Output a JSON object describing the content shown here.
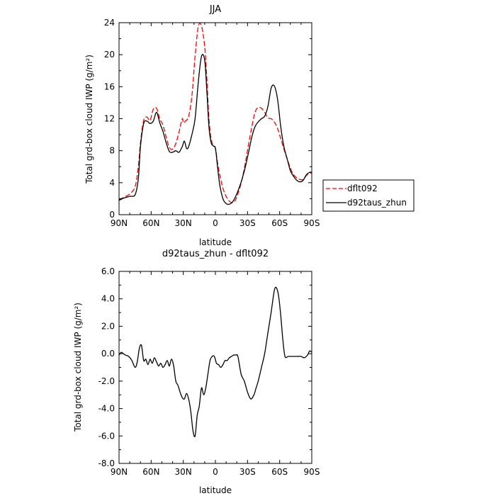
{
  "chart_data": [
    {
      "type": "line",
      "title": "JJA",
      "xlabel": "latitude",
      "ylabel": "Total grd-box cloud IWP (g/m²)",
      "xlim": [
        90,
        -90
      ],
      "ylim": [
        0,
        24
      ],
      "x_ticks": [
        90,
        60,
        30,
        0,
        -30,
        -60,
        -90
      ],
      "x_tick_labels": [
        "90N",
        "60N",
        "30N",
        "0",
        "30S",
        "60S",
        "90S"
      ],
      "y_ticks": [
        0,
        4,
        8,
        12,
        16,
        20,
        24
      ],
      "y_tick_labels": [
        "0",
        "4",
        "8",
        "12",
        "16",
        "20",
        "24"
      ],
      "legend_position": "outside-right",
      "series": [
        {
          "name": "dflt092",
          "color": "#ff0000",
          "dash": "dashed",
          "x": [
            90,
            85,
            80,
            75,
            72,
            70,
            67,
            64,
            61,
            58,
            55,
            52,
            49,
            46,
            43,
            40,
            37,
            34,
            31,
            30,
            28,
            25,
            22,
            19,
            16,
            13,
            10,
            8,
            6,
            4,
            2,
            0,
            -2,
            -4,
            -7,
            -10,
            -13,
            -16,
            -19,
            -22,
            -25,
            -28,
            -31,
            -34,
            -37,
            -40,
            -43,
            -46,
            -49,
            -52,
            -55,
            -58,
            -61,
            -64,
            -67,
            -70,
            -73,
            -76,
            -79,
            -82,
            -85,
            -88,
            -90
          ],
          "y": [
            1.9,
            2.2,
            2.6,
            3.5,
            6.0,
            9.0,
            11.8,
            12.2,
            11.8,
            13.2,
            13.3,
            12.0,
            11.2,
            9.7,
            8.4,
            8.2,
            8.9,
            10.3,
            12.0,
            11.5,
            11.7,
            12.3,
            14.8,
            19.8,
            23.5,
            23.6,
            21.0,
            17.0,
            12.0,
            9.5,
            8.6,
            8.3,
            6.5,
            5.0,
            3.3,
            2.3,
            1.7,
            1.5,
            1.9,
            3.0,
            4.5,
            6.5,
            8.8,
            11.0,
            12.8,
            13.4,
            13.3,
            12.8,
            12.1,
            12.0,
            11.6,
            10.8,
            9.5,
            8.2,
            7.0,
            5.8,
            5.0,
            4.6,
            4.4,
            4.4,
            4.9,
            5.2,
            5.2
          ]
        },
        {
          "name": "d92taus_zhun",
          "color": "#000000",
          "dash": "solid",
          "x": [
            90,
            85,
            80,
            75,
            72,
            70,
            67,
            64,
            61,
            58,
            55,
            52,
            49,
            46,
            43,
            40,
            37,
            34,
            31,
            29,
            27,
            25,
            22,
            19,
            16,
            13,
            10,
            8,
            6,
            4,
            2,
            0,
            -2,
            -4,
            -7,
            -10,
            -13,
            -16,
            -19,
            -22,
            -25,
            -28,
            -31,
            -34,
            -37,
            -40,
            -43,
            -46,
            -49,
            -52,
            -55,
            -58,
            -61,
            -64,
            -67,
            -70,
            -73,
            -76,
            -79,
            -82,
            -85,
            -88,
            -90
          ],
          "y": [
            1.8,
            2.1,
            2.3,
            2.5,
            4.5,
            8.5,
            11.4,
            11.7,
            11.4,
            11.7,
            12.8,
            11.5,
            10.4,
            9.0,
            7.9,
            7.8,
            8.0,
            7.8,
            8.5,
            9.2,
            8.3,
            8.5,
            10.0,
            12.0,
            16.5,
            19.8,
            19.3,
            15.5,
            11.0,
            9.0,
            8.6,
            8.3,
            6.0,
            3.8,
            2.0,
            1.4,
            1.3,
            1.6,
            2.3,
            3.3,
            4.5,
            6.0,
            7.8,
            9.7,
            11.0,
            11.6,
            12.0,
            12.3,
            13.5,
            15.8,
            16.1,
            14.5,
            11.0,
            8.5,
            7.0,
            5.5,
            4.8,
            4.3,
            4.1,
            4.3,
            5.0,
            5.3,
            5.3
          ]
        }
      ]
    },
    {
      "type": "line",
      "title": "d92taus_zhun - dflt092",
      "xlabel": "latitude",
      "ylabel": "Total grd-box cloud IWP (g/m²)",
      "xlim": [
        90,
        -90
      ],
      "ylim": [
        -8,
        6
      ],
      "x_ticks": [
        90,
        60,
        30,
        0,
        -30,
        -60,
        -90
      ],
      "x_tick_labels": [
        "90N",
        "60N",
        "30N",
        "0",
        "30S",
        "60S",
        "90S"
      ],
      "y_ticks": [
        -8,
        -6,
        -4,
        -2,
        0,
        2,
        4,
        6
      ],
      "y_tick_labels": [
        "-8.0",
        "-6.0",
        "-4.0",
        "-2.0",
        "0.0",
        "2.0",
        "4.0",
        "6.0"
      ],
      "series": [
        {
          "color": "#000000",
          "dash": "solid",
          "x": [
            90,
            88,
            86,
            84,
            81,
            78,
            75,
            73,
            71,
            69,
            67,
            65,
            63,
            61,
            59,
            57,
            55,
            53,
            51,
            49,
            47,
            45,
            43,
            41,
            39,
            37,
            35,
            33,
            31,
            29,
            27,
            25,
            23,
            21,
            19,
            17,
            15,
            13,
            11,
            9,
            7,
            5,
            3,
            1,
            -1,
            -3,
            -5,
            -7,
            -9,
            -11,
            -13,
            -15,
            -17,
            -19,
            -21,
            -24,
            -27,
            -30,
            -33,
            -36,
            -38,
            -40,
            -43,
            -46,
            -49,
            -52,
            -55,
            -57,
            -59,
            -61,
            -63,
            -65,
            -68,
            -71,
            -74,
            -77,
            -80,
            -83,
            -86,
            -88,
            -90
          ],
          "y": [
            -0.1,
            0.1,
            0.0,
            -0.1,
            -0.2,
            -0.5,
            -1.0,
            -0.6,
            0.4,
            0.6,
            -0.5,
            -0.4,
            -0.8,
            -0.4,
            -0.7,
            -0.3,
            -0.6,
            -0.9,
            -0.7,
            -1.0,
            -0.8,
            -0.5,
            -0.9,
            -0.4,
            -0.9,
            -2.0,
            -2.3,
            -2.8,
            -3.2,
            -3.3,
            -2.9,
            -3.3,
            -4.2,
            -5.6,
            -6.0,
            -4.5,
            -3.8,
            -2.5,
            -3.0,
            -2.5,
            -1.5,
            -0.5,
            -0.2,
            -0.2,
            -0.7,
            -0.8,
            -1.0,
            -0.8,
            -0.5,
            -0.5,
            -0.3,
            -0.2,
            -0.1,
            -0.1,
            -0.2,
            -1.5,
            -2.0,
            -2.8,
            -3.3,
            -3.0,
            -2.5,
            -2.0,
            -1.0,
            0.0,
            1.5,
            3.0,
            4.6,
            4.8,
            4.2,
            2.8,
            1.0,
            -0.2,
            -0.2,
            -0.2,
            -0.2,
            -0.2,
            -0.2,
            -0.3,
            -0.1,
            0.2,
            0.1
          ]
        }
      ]
    }
  ]
}
